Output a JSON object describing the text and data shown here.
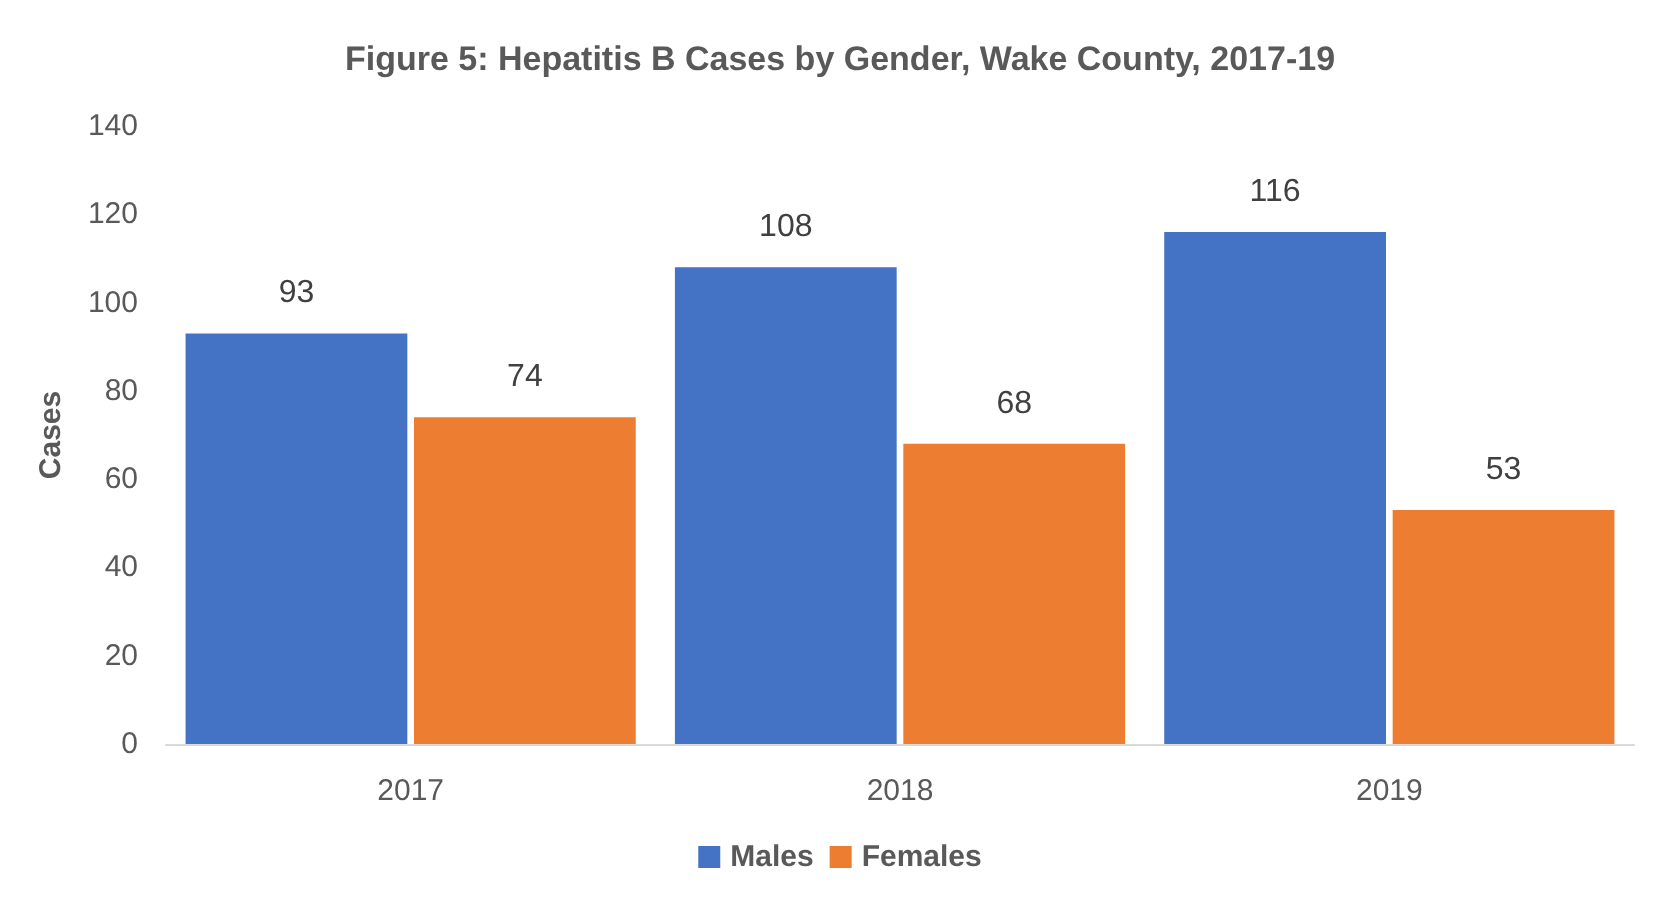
{
  "chart_data": {
    "type": "bar",
    "title": "Figure 5: Hepatitis B Cases by Gender, Wake County, 2017-19",
    "ylabel": "Cases",
    "categories": [
      "2017",
      "2018",
      "2019"
    ],
    "series": [
      {
        "name": "Males",
        "color": "#4472c4",
        "values": [
          93,
          108,
          116
        ]
      },
      {
        "name": "Females",
        "color": "#ed7d31",
        "values": [
          74,
          68,
          53
        ]
      }
    ],
    "ylim": [
      0,
      140
    ],
    "yticks": [
      0,
      20,
      40,
      60,
      80,
      100,
      120,
      140
    ],
    "grid": false,
    "legend": "bottom",
    "data_labels": true
  }
}
